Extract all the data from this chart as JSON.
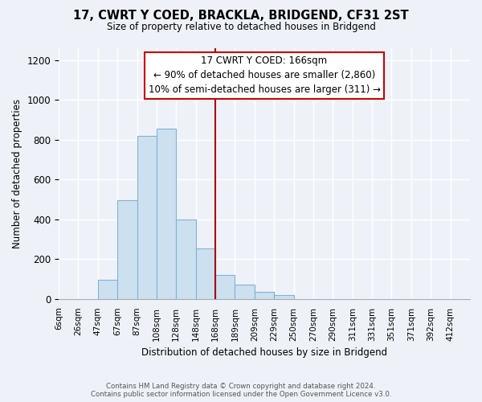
{
  "title": "17, CWRT Y COED, BRACKLA, BRIDGEND, CF31 2ST",
  "subtitle": "Size of property relative to detached houses in Bridgend",
  "xlabel": "Distribution of detached houses by size in Bridgend",
  "ylabel": "Number of detached properties",
  "bar_labels": [
    "6sqm",
    "26sqm",
    "47sqm",
    "67sqm",
    "87sqm",
    "108sqm",
    "128sqm",
    "148sqm",
    "168sqm",
    "189sqm",
    "209sqm",
    "229sqm",
    "250sqm",
    "270sqm",
    "290sqm",
    "311sqm",
    "331sqm",
    "351sqm",
    "371sqm",
    "392sqm",
    "412sqm"
  ],
  "bar_values": [
    0,
    0,
    95,
    495,
    820,
    855,
    400,
    255,
    120,
    70,
    35,
    20,
    0,
    0,
    0,
    0,
    0,
    0,
    0,
    0,
    0
  ],
  "bar_color": "#cce0f0",
  "bar_edge_color": "#7fb3d3",
  "vline_x": 8,
  "vline_color": "#aa0000",
  "annotation_title": "17 CWRT Y COED: 166sqm",
  "annotation_line1": "← 90% of detached houses are smaller (2,860)",
  "annotation_line2": "10% of semi-detached houses are larger (311) →",
  "annotation_box_color": "#ffffff",
  "annotation_box_edge": "#cc0000",
  "ylim": [
    0,
    1260
  ],
  "yticks": [
    0,
    200,
    400,
    600,
    800,
    1000,
    1200
  ],
  "footer_line1": "Contains HM Land Registry data © Crown copyright and database right 2024.",
  "footer_line2": "Contains public sector information licensed under the Open Government Licence v3.0.",
  "bg_color": "#eef2f8"
}
